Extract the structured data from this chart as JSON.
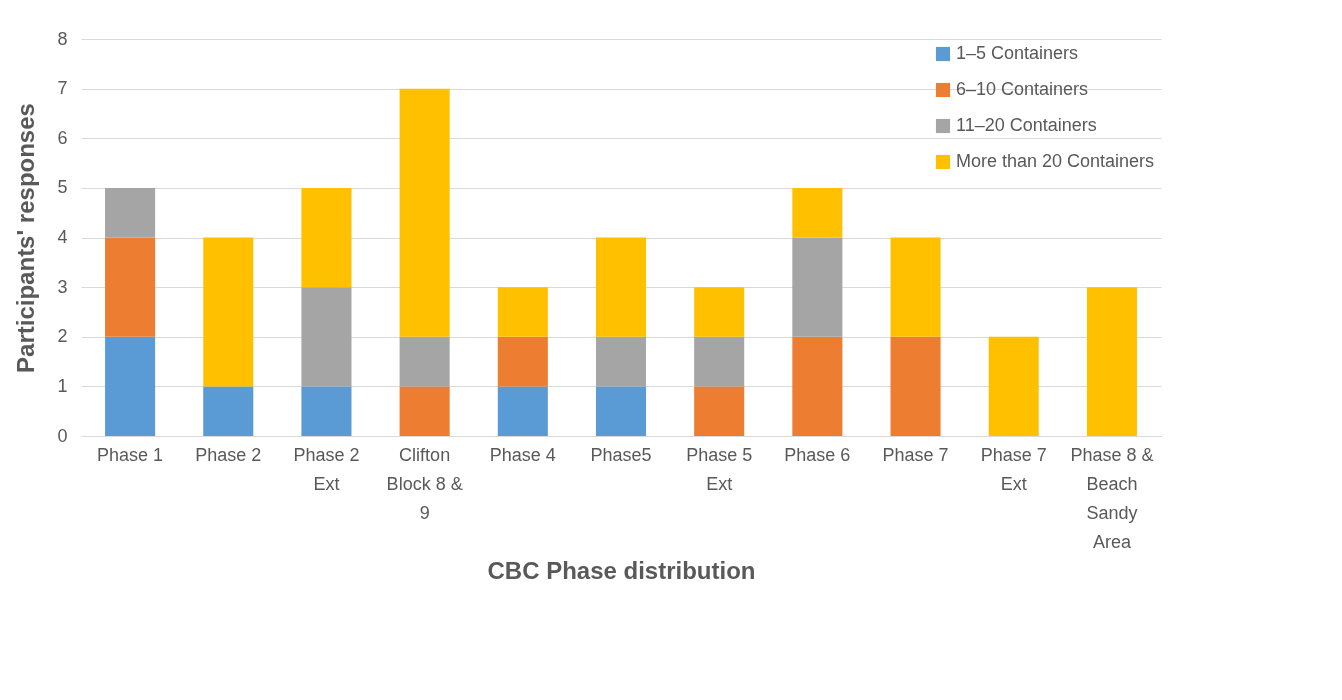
{
  "chart_data": {
    "type": "bar",
    "stacked": true,
    "xlabel": "CBC Phase distribution",
    "ylabel": "Participants' responses",
    "categories": [
      "Phase 1",
      "Phase 2",
      "Phase 2 Ext",
      "Clifton Block 8 & 9",
      "Phase 4",
      "Phase5",
      "Phase 5 Ext",
      "Phase 6",
      "Phase 7",
      "Phase 7 Ext",
      "Phase 8 & Beach Sandy Area"
    ],
    "series": [
      {
        "name": "1–5 Containers",
        "color": "#5b9bd5",
        "values": [
          2,
          1,
          1,
          0,
          1,
          1,
          0,
          0,
          0,
          0,
          0
        ]
      },
      {
        "name": "6–10 Containers",
        "color": "#ed7d31",
        "values": [
          2,
          0,
          0,
          1,
          1,
          0,
          1,
          2,
          2,
          0,
          0
        ]
      },
      {
        "name": "11–20 Containers",
        "color": "#a5a5a5",
        "values": [
          1,
          0,
          2,
          1,
          0,
          1,
          1,
          2,
          0,
          0,
          0
        ]
      },
      {
        "name": "More than 20 Containers",
        "color": "#ffc000",
        "values": [
          0,
          3,
          2,
          5,
          1,
          2,
          1,
          1,
          2,
          2,
          3
        ]
      }
    ],
    "ylim": [
      0,
      8
    ],
    "yticks": [
      0,
      1,
      2,
      3,
      4,
      5,
      6,
      7,
      8
    ],
    "grid": "y",
    "legend": "top right"
  }
}
